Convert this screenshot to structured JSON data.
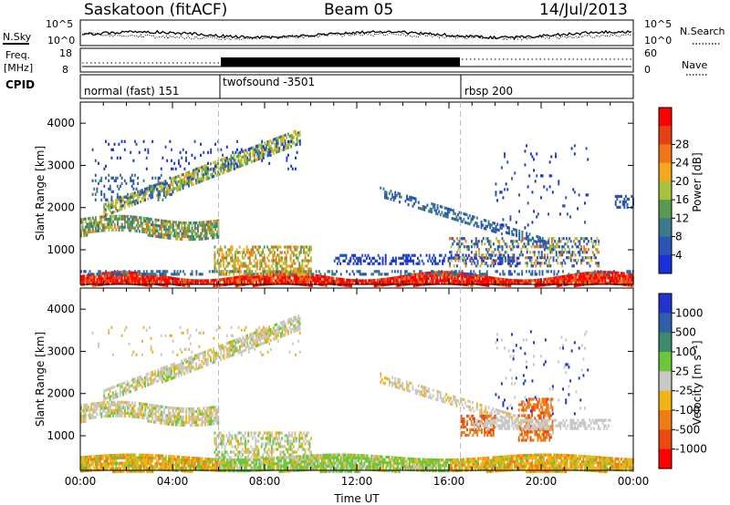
{
  "header": {
    "station": "Saskatoon (fitACF)",
    "beam": "Beam 05",
    "date": "14/Jul/2013"
  },
  "summary_panel": {
    "nsky_label": "N.Sky",
    "nsky_ticks": [
      "10^5",
      "10^0"
    ],
    "nsearch_label": "N.Search",
    "nsearch_ticks": [
      "10^5",
      "10^0"
    ],
    "freq_label_line1": "Freq.",
    "freq_label_line2": "[MHz]",
    "freq_ticks": [
      "18",
      "8"
    ],
    "nave_label": "Nave",
    "nave_ticks": [
      "60",
      "0"
    ],
    "cpid_label": "CPID",
    "cpid_modes": [
      {
        "label": "normal (fast) 151",
        "start_hour": 0
      },
      {
        "label": "twofsound -3501",
        "start_hour": 6
      },
      {
        "label": "rbsp 200",
        "start_hour": 16.5
      }
    ]
  },
  "chart_data": [
    {
      "type": "heatmap",
      "name": "power",
      "ylabel": "Slant Range [km]",
      "xlabel": "",
      "xlim": [
        0,
        24
      ],
      "ylim": [
        180,
        4500
      ],
      "yticks": [
        1000,
        2000,
        3000,
        4000
      ],
      "colorbar_label": "Power [dB]",
      "colorbar_ticks": [
        "4",
        "8",
        "12",
        "16",
        "20",
        "24",
        "28"
      ],
      "colorbar_colors": [
        "#1a2fd8",
        "#2a55b5",
        "#3a7a8a",
        "#5a9a50",
        "#a6c33a",
        "#f3a91d",
        "#f07418",
        "#e64016",
        "#ff0000"
      ],
      "mode_boundaries": [
        6,
        16.5
      ]
    },
    {
      "type": "heatmap",
      "name": "velocity",
      "ylabel": "Slant Range [km]",
      "xlabel": "Time UT",
      "xlim": [
        0,
        24
      ],
      "ylim": [
        180,
        4500
      ],
      "yticks": [
        1000,
        2000,
        3000,
        4000
      ],
      "xticks": [
        "00:00",
        "04:00",
        "08:00",
        "12:00",
        "16:00",
        "20:00",
        "00:00"
      ],
      "colorbar_label": "Velocity [m s⁻¹]",
      "colorbar_ticks": [
        "1000",
        "500",
        "100",
        "25",
        "-25",
        "-100",
        "-500",
        "-1000"
      ],
      "colorbar_colors": [
        "#2233cc",
        "#2f5fa8",
        "#3e8a6c",
        "#6cc63a",
        "#c8c8c4",
        "#f2b414",
        "#ef7c14",
        "#e84a12",
        "#ff0000"
      ],
      "mode_boundaries": [
        6,
        16.5
      ]
    }
  ]
}
